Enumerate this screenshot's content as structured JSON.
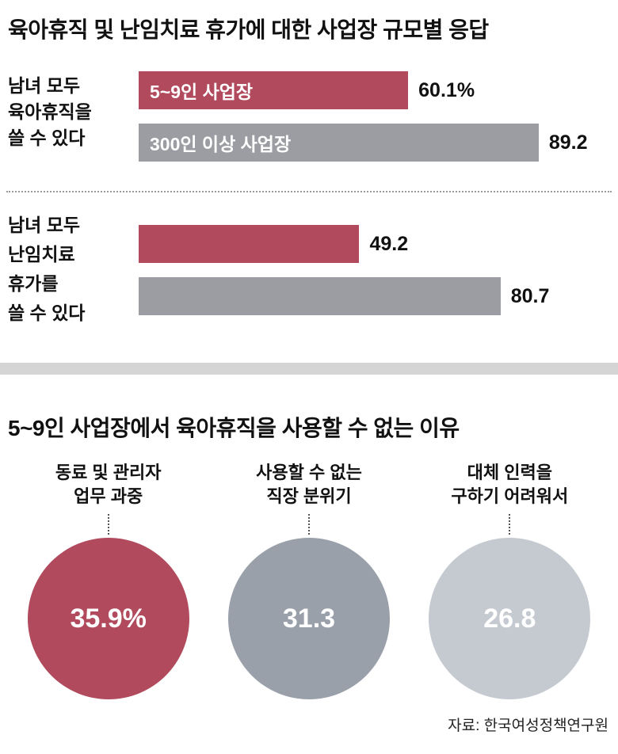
{
  "chart_data": [
    {
      "type": "bar",
      "title": "육아휴직 및 난임치료 휴가에 대한 사업장 규모별 응답",
      "xlim": [
        0,
        100
      ],
      "legend": [
        "5~9인 사업장",
        "300인 이상 사업장"
      ],
      "groups": [
        {
          "label_lines": [
            "남녀 모두",
            "육아휴직을",
            "쓸 수 있다"
          ],
          "bars": [
            {
              "name": "5~9인 사업장",
              "value": 60.1,
              "display": "60.1%",
              "color": "#b04a5c"
            },
            {
              "name": "300인 이상 사업장",
              "value": 89.2,
              "display": "89.2",
              "color": "#9b9da2"
            }
          ]
        },
        {
          "label_lines": [
            "남녀 모두",
            "난임치료",
            "휴가를",
            "쓸 수 있다"
          ],
          "bars": [
            {
              "value": 49.2,
              "display": "49.2",
              "color": "#b04a5c"
            },
            {
              "value": 80.7,
              "display": "80.7",
              "color": "#9b9da2"
            }
          ]
        }
      ]
    },
    {
      "type": "pie",
      "title": "5~9인 사업장에서 육아휴직을 사용할 수 없는 이유",
      "items": [
        {
          "label_lines": [
            "동료 및 관리자",
            "업무 과중"
          ],
          "value": 35.9,
          "display": "35.9%",
          "color": "#b04a5c"
        },
        {
          "label_lines": [
            "사용할 수 없는",
            "직장 분위기"
          ],
          "value": 31.3,
          "display": "31.3",
          "color": "#99a0aa"
        },
        {
          "label_lines": [
            "대체 인력을",
            "구하기 어려워서"
          ],
          "value": 26.8,
          "display": "26.8",
          "color": "#c4cad0"
        }
      ],
      "source": "자료: 한국여성정책연구원"
    }
  ]
}
